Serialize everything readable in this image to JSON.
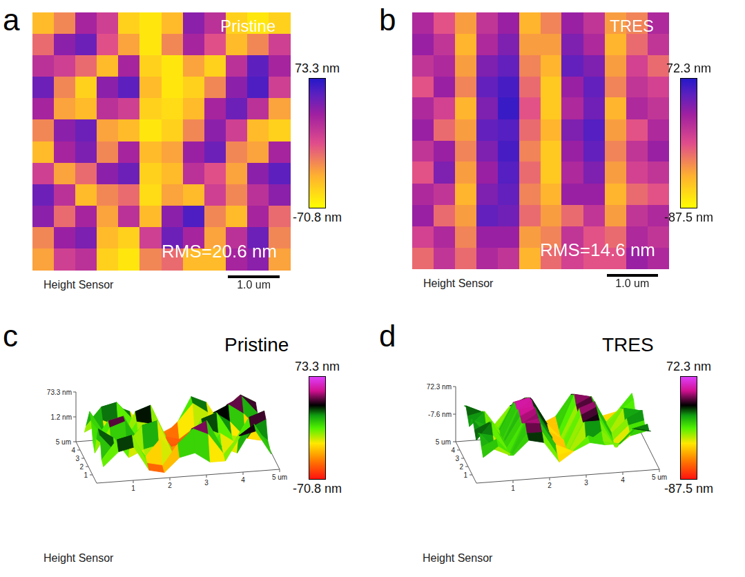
{
  "chart_data": [
    {
      "panel": "a",
      "type": "heatmap",
      "title": "Pristine",
      "annotation": "RMS=20.6 nm",
      "footer": "Height Sensor",
      "xlim": [
        0,
        5
      ],
      "ylim": [
        0,
        5
      ],
      "tick_labels": false,
      "scale_bar": {
        "length": 1.0,
        "label": "1.0 um"
      },
      "colorbar": {
        "range": [
          -70.8,
          73.3
        ],
        "ticks": [
          {
            "value": -70.8,
            "label": "-70.8 nm"
          },
          {
            "value": 73.3,
            "label": "73.3 nm"
          }
        ]
      },
      "cells": [
        [
          -40,
          -20,
          30,
          10,
          -50,
          -60,
          -40,
          40,
          20,
          -50,
          -60,
          -50
        ],
        [
          -10,
          40,
          50,
          0,
          -30,
          -60,
          -20,
          30,
          0,
          -40,
          -20,
          10
        ],
        [
          20,
          10,
          -10,
          -40,
          30,
          -50,
          -60,
          -30,
          -50,
          20,
          55,
          30
        ],
        [
          50,
          -20,
          -50,
          40,
          55,
          -40,
          -60,
          -50,
          -20,
          40,
          60,
          10
        ],
        [
          30,
          -30,
          -40,
          20,
          10,
          -50,
          -55,
          -40,
          30,
          50,
          20,
          -30
        ],
        [
          -20,
          40,
          50,
          -30,
          -40,
          -60,
          -50,
          -20,
          40,
          10,
          -40,
          -50
        ],
        [
          -40,
          30,
          45,
          -20,
          30,
          -40,
          -30,
          35,
          50,
          -20,
          -30,
          30
        ],
        [
          10,
          -30,
          -10,
          40,
          50,
          -50,
          -40,
          20,
          0,
          -30,
          40,
          55
        ],
        [
          50,
          20,
          -40,
          -20,
          -10,
          -55,
          -30,
          -40,
          10,
          -20,
          20,
          40
        ],
        [
          40,
          -10,
          30,
          -30,
          20,
          -40,
          40,
          60,
          -20,
          -40,
          30,
          -10
        ],
        [
          -20,
          35,
          45,
          -40,
          -50,
          10,
          50,
          30,
          -30,
          20,
          50,
          -20
        ],
        [
          -30,
          10,
          20,
          -50,
          -60,
          -20,
          -10,
          -40,
          -40,
          30,
          40,
          -30
        ]
      ]
    },
    {
      "panel": "b",
      "type": "heatmap",
      "title": "TRES",
      "annotation": "RMS=14.6 nm",
      "footer": "Height Sensor",
      "xlim": [
        0,
        5
      ],
      "ylim": [
        0,
        5
      ],
      "tick_labels": false,
      "scale_bar": {
        "length": 1.0,
        "label": "1.0 um"
      },
      "colorbar": {
        "range": [
          -87.5,
          72.3
        ],
        "ticks": [
          {
            "value": -87.5,
            "label": "-87.5 nm"
          },
          {
            "value": 72.3,
            "label": "72.3 nm"
          }
        ]
      },
      "cells": [
        [
          20,
          -10,
          -40,
          10,
          30,
          -50,
          -30,
          30,
          10,
          -40,
          -30,
          20
        ],
        [
          30,
          10,
          -50,
          20,
          40,
          -40,
          -40,
          40,
          20,
          -50,
          -20,
          10
        ],
        [
          10,
          20,
          -40,
          40,
          50,
          -30,
          -50,
          50,
          40,
          -40,
          0,
          -20
        ],
        [
          -10,
          30,
          -30,
          50,
          60,
          -20,
          -60,
          30,
          50,
          -30,
          10,
          0
        ],
        [
          20,
          0,
          -50,
          40,
          65,
          -10,
          -60,
          20,
          45,
          -50,
          20,
          10
        ],
        [
          30,
          -20,
          -40,
          50,
          55,
          -20,
          -50,
          40,
          55,
          -40,
          -10,
          20
        ],
        [
          10,
          30,
          -30,
          40,
          60,
          -30,
          -60,
          30,
          50,
          -30,
          10,
          30
        ],
        [
          -10,
          40,
          -40,
          30,
          55,
          -20,
          -60,
          20,
          40,
          -40,
          0,
          10
        ],
        [
          20,
          10,
          -50,
          40,
          50,
          -30,
          -50,
          30,
          30,
          -50,
          -20,
          -10
        ],
        [
          30,
          -20,
          -40,
          50,
          45,
          -20,
          -40,
          -20,
          10,
          -40,
          10,
          20
        ],
        [
          0,
          20,
          -30,
          30,
          30,
          -40,
          -30,
          10,
          -10,
          -20,
          20,
          10
        ],
        [
          -20,
          10,
          -20,
          20,
          10,
          -50,
          -20,
          0,
          -10,
          -10,
          30,
          20
        ]
      ]
    },
    {
      "panel": "c",
      "type": "surface3d",
      "title": "Pristine",
      "footer": "Height Sensor",
      "xlim": [
        0,
        5
      ],
      "ylim": [
        0,
        5
      ],
      "xticks": [
        1,
        2,
        3,
        4,
        {
          "value": 5,
          "label": "5 um"
        }
      ],
      "yticks": [
        1,
        2,
        3,
        4,
        {
          "value": 5,
          "label": "5 um"
        }
      ],
      "zticks": [
        {
          "value": 1.2,
          "label": "1.2 nm"
        },
        {
          "value": 73.3,
          "label": "73.3 nm"
        }
      ],
      "colorbar": {
        "range": [
          -70.8,
          73.3
        ],
        "ticks": [
          {
            "value": -70.8,
            "label": "-70.8 nm"
          },
          {
            "value": 73.3,
            "label": "73.3 nm"
          }
        ]
      },
      "cells": [
        [
          -40,
          -20,
          30,
          10,
          -50,
          -60,
          -40,
          40,
          20,
          -50,
          -60,
          -50
        ],
        [
          -10,
          40,
          50,
          0,
          -30,
          -60,
          -20,
          30,
          0,
          -40,
          -20,
          10
        ],
        [
          20,
          10,
          -10,
          -40,
          30,
          -50,
          -60,
          -30,
          -50,
          20,
          55,
          30
        ],
        [
          50,
          -20,
          -50,
          40,
          55,
          -40,
          -60,
          -50,
          -20,
          40,
          60,
          10
        ],
        [
          30,
          -30,
          -40,
          20,
          10,
          -50,
          -55,
          -40,
          30,
          50,
          20,
          -30
        ],
        [
          -20,
          40,
          50,
          -30,
          -40,
          -60,
          -50,
          -20,
          40,
          10,
          -40,
          -50
        ],
        [
          -40,
          30,
          45,
          -20,
          30,
          -40,
          -30,
          35,
          50,
          -20,
          -30,
          30
        ],
        [
          10,
          -30,
          -10,
          40,
          50,
          -50,
          -40,
          20,
          0,
          -30,
          40,
          55
        ],
        [
          50,
          20,
          -40,
          -20,
          -10,
          -55,
          -30,
          -40,
          10,
          -20,
          20,
          40
        ],
        [
          40,
          -10,
          30,
          -30,
          20,
          -40,
          40,
          60,
          -20,
          -40,
          30,
          -10
        ],
        [
          -20,
          35,
          45,
          -40,
          -50,
          10,
          50,
          30,
          -30,
          20,
          50,
          -20
        ],
        [
          -30,
          10,
          20,
          -50,
          -60,
          -20,
          -10,
          -40,
          -40,
          30,
          40,
          -30
        ]
      ]
    },
    {
      "panel": "d",
      "type": "surface3d",
      "title": "TRES",
      "footer": "Height Sensor",
      "xlim": [
        0,
        5
      ],
      "ylim": [
        0,
        5
      ],
      "xticks": [
        1,
        2,
        3,
        4,
        {
          "value": 5,
          "label": "5 um"
        }
      ],
      "yticks": [
        1,
        2,
        3,
        4,
        {
          "value": 5,
          "label": "5 um"
        }
      ],
      "zticks": [
        {
          "value": -7.6,
          "label": "-7.6 nm"
        },
        {
          "value": 72.3,
          "label": "72.3 nm"
        }
      ],
      "colorbar": {
        "range": [
          -87.5,
          72.3
        ],
        "ticks": [
          {
            "value": -87.5,
            "label": "-87.5 nm"
          },
          {
            "value": 72.3,
            "label": "72.3 nm"
          }
        ]
      },
      "cells": [
        [
          20,
          -10,
          -40,
          10,
          30,
          -50,
          -30,
          30,
          10,
          -40,
          -30,
          20
        ],
        [
          30,
          10,
          -50,
          20,
          40,
          -40,
          -40,
          40,
          20,
          -50,
          -20,
          10
        ],
        [
          10,
          20,
          -40,
          40,
          50,
          -30,
          -50,
          50,
          40,
          -40,
          0,
          -20
        ],
        [
          -10,
          30,
          -30,
          50,
          60,
          -20,
          -60,
          30,
          50,
          -30,
          10,
          0
        ],
        [
          20,
          0,
          -50,
          40,
          65,
          -10,
          -60,
          20,
          45,
          -50,
          20,
          10
        ],
        [
          30,
          -20,
          -40,
          50,
          55,
          -20,
          -50,
          40,
          55,
          -40,
          -10,
          20
        ],
        [
          10,
          30,
          -30,
          40,
          60,
          -30,
          -60,
          30,
          50,
          -30,
          10,
          30
        ],
        [
          -10,
          40,
          -40,
          30,
          55,
          -20,
          -60,
          20,
          40,
          -40,
          0,
          10
        ],
        [
          20,
          10,
          -50,
          40,
          50,
          -30,
          -50,
          30,
          30,
          -50,
          -20,
          -10
        ],
        [
          30,
          -20,
          -40,
          50,
          45,
          -20,
          -40,
          -20,
          10,
          -40,
          10,
          20
        ],
        [
          0,
          20,
          -30,
          30,
          30,
          -40,
          -30,
          10,
          -10,
          -20,
          20,
          10
        ],
        [
          -20,
          10,
          -20,
          20,
          10,
          -50,
          -20,
          0,
          -10,
          -10,
          30,
          20
        ]
      ]
    }
  ]
}
